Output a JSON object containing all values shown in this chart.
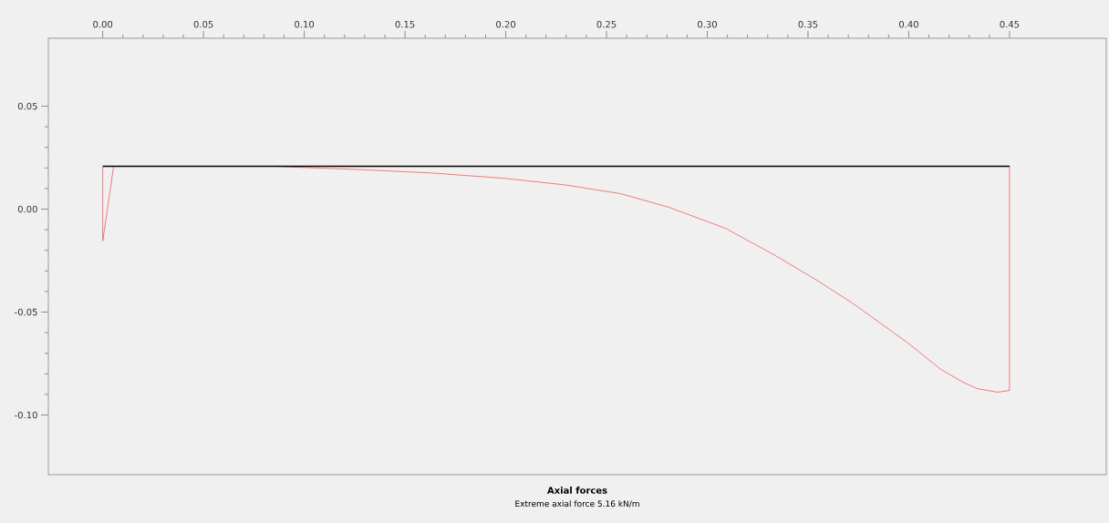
{
  "chart_data": {
    "type": "line",
    "title": "Axial forces",
    "subtitle": "Extreme axial force 5.16 kN/m",
    "xlim": [
      -0.027,
      0.498
    ],
    "ylim": [
      -0.129,
      0.083
    ],
    "xticks": [
      {
        "value": 0,
        "label": "0.00"
      },
      {
        "value": 0.05,
        "label": "0.05"
      },
      {
        "value": 0.1,
        "label": "0.10"
      },
      {
        "value": 0.15,
        "label": "0.15"
      },
      {
        "value": 0.2,
        "label": "0.20"
      },
      {
        "value": 0.25,
        "label": "0.25"
      },
      {
        "value": 0.3,
        "label": "0.30"
      },
      {
        "value": 0.35,
        "label": "0.35"
      },
      {
        "value": 0.4,
        "label": "0.40"
      },
      {
        "value": 0.45,
        "label": "0.45"
      }
    ],
    "yticks": [
      {
        "value": 0.05,
        "label": "0.05"
      },
      {
        "value": 0,
        "label": "0.00"
      },
      {
        "value": -0.05,
        "label": "-0.05"
      },
      {
        "value": -0.1,
        "label": "-0.10"
      }
    ],
    "grid": false,
    "marker": "none",
    "series": [
      {
        "color": "#f04848",
        "x": [
          0,
          0,
          0.0054,
          0.085,
          0.128,
          0.164,
          0.199,
          0.23,
          0.257,
          0.281,
          0.309,
          0.333,
          0.354,
          0.372,
          0.399,
          0.416,
          0.427,
          0.434,
          0.444,
          0.45,
          0.45
        ],
        "values": [
          0.0208,
          -0.0155,
          0.0208,
          0.0208,
          0.0192,
          0.0175,
          0.015,
          0.0117,
          0.0075,
          0.0009,
          -0.0093,
          -0.0221,
          -0.0343,
          -0.0456,
          -0.0646,
          -0.0779,
          -0.0841,
          -0.0872,
          -0.0889,
          -0.0881,
          0.0208
        ]
      },
      {
        "color": "#000000",
        "x": [
          0,
          0.45
        ],
        "values": [
          0.0208,
          0.0208
        ]
      }
    ]
  }
}
